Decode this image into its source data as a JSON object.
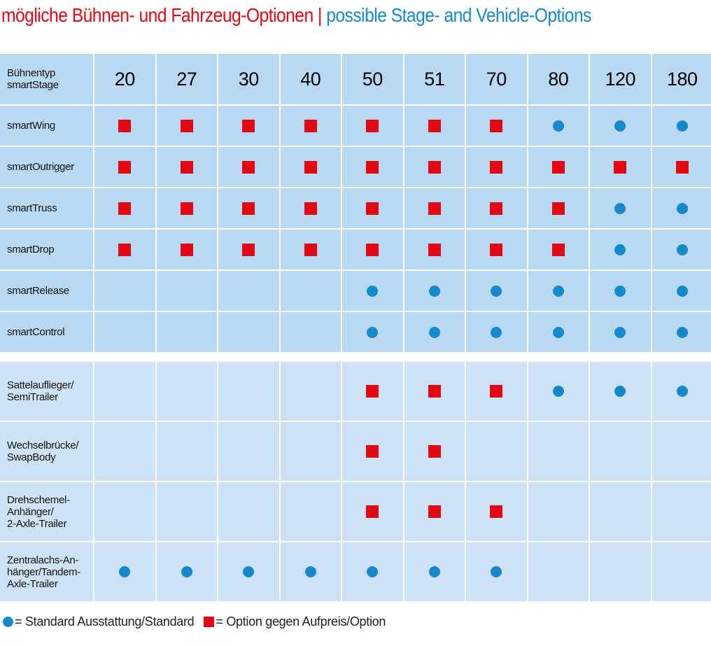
{
  "title": {
    "german": "mögliche Bühnen- und Fahrzeug-Optionen",
    "separator": "|",
    "english": "possible Stage- and Vehicle-Options"
  },
  "colors": {
    "standard_dot": "#1689ca",
    "option_square": "#e30613",
    "cell_bg": "#b9d8f2",
    "cell_bg_light": "#cde3f5"
  },
  "icons": {
    "standard": "blue-circle-icon",
    "option": "red-square-icon"
  },
  "table": {
    "header_label": "Bühnentyp\nsmartStage",
    "columns": [
      "20",
      "27",
      "30",
      "40",
      "50",
      "51",
      "70",
      "80",
      "120",
      "180"
    ],
    "stage_rows": [
      {
        "label": "smartWing",
        "values": [
          "O",
          "O",
          "O",
          "O",
          "O",
          "O",
          "O",
          "S",
          "S",
          "S"
        ]
      },
      {
        "label": "smartOutrigger",
        "values": [
          "O",
          "O",
          "O",
          "O",
          "O",
          "O",
          "O",
          "O",
          "O",
          "O"
        ]
      },
      {
        "label": "smartTruss",
        "values": [
          "O",
          "O",
          "O",
          "O",
          "O",
          "O",
          "O",
          "O",
          "S",
          "S"
        ]
      },
      {
        "label": "smartDrop",
        "values": [
          "O",
          "O",
          "O",
          "O",
          "O",
          "O",
          "O",
          "O",
          "S",
          "S"
        ]
      },
      {
        "label": "smartRelease",
        "values": [
          "",
          "",
          "",
          "",
          "S",
          "S",
          "S",
          "S",
          "S",
          "S"
        ]
      },
      {
        "label": "smartControl",
        "values": [
          "",
          "",
          "",
          "",
          "S",
          "S",
          "S",
          "S",
          "S",
          "S"
        ]
      }
    ],
    "vehicle_rows": [
      {
        "label": "Sattelauflieger/\nSemiTrailer",
        "values": [
          "",
          "",
          "",
          "",
          "O",
          "O",
          "O",
          "S",
          "S",
          "S"
        ]
      },
      {
        "label": "Wechselbrücke/\nSwapBody",
        "values": [
          "",
          "",
          "",
          "",
          "O",
          "O",
          "",
          "",
          "",
          ""
        ]
      },
      {
        "label": "Drehschemel-\nAnhänger/\n2-Axle-Trailer",
        "values": [
          "",
          "",
          "",
          "",
          "O",
          "O",
          "O",
          "",
          "",
          ""
        ]
      },
      {
        "label": "Zentralachs-An-\nhänger/Tandem-\nAxle-Trailer",
        "values": [
          "S",
          "S",
          "S",
          "S",
          "S",
          "S",
          "S",
          "",
          "",
          ""
        ]
      }
    ]
  },
  "legend": {
    "standard_text": "= Standard Ausstattung/Standard",
    "option_text": "= Option gegen Aufpreis/Option"
  }
}
